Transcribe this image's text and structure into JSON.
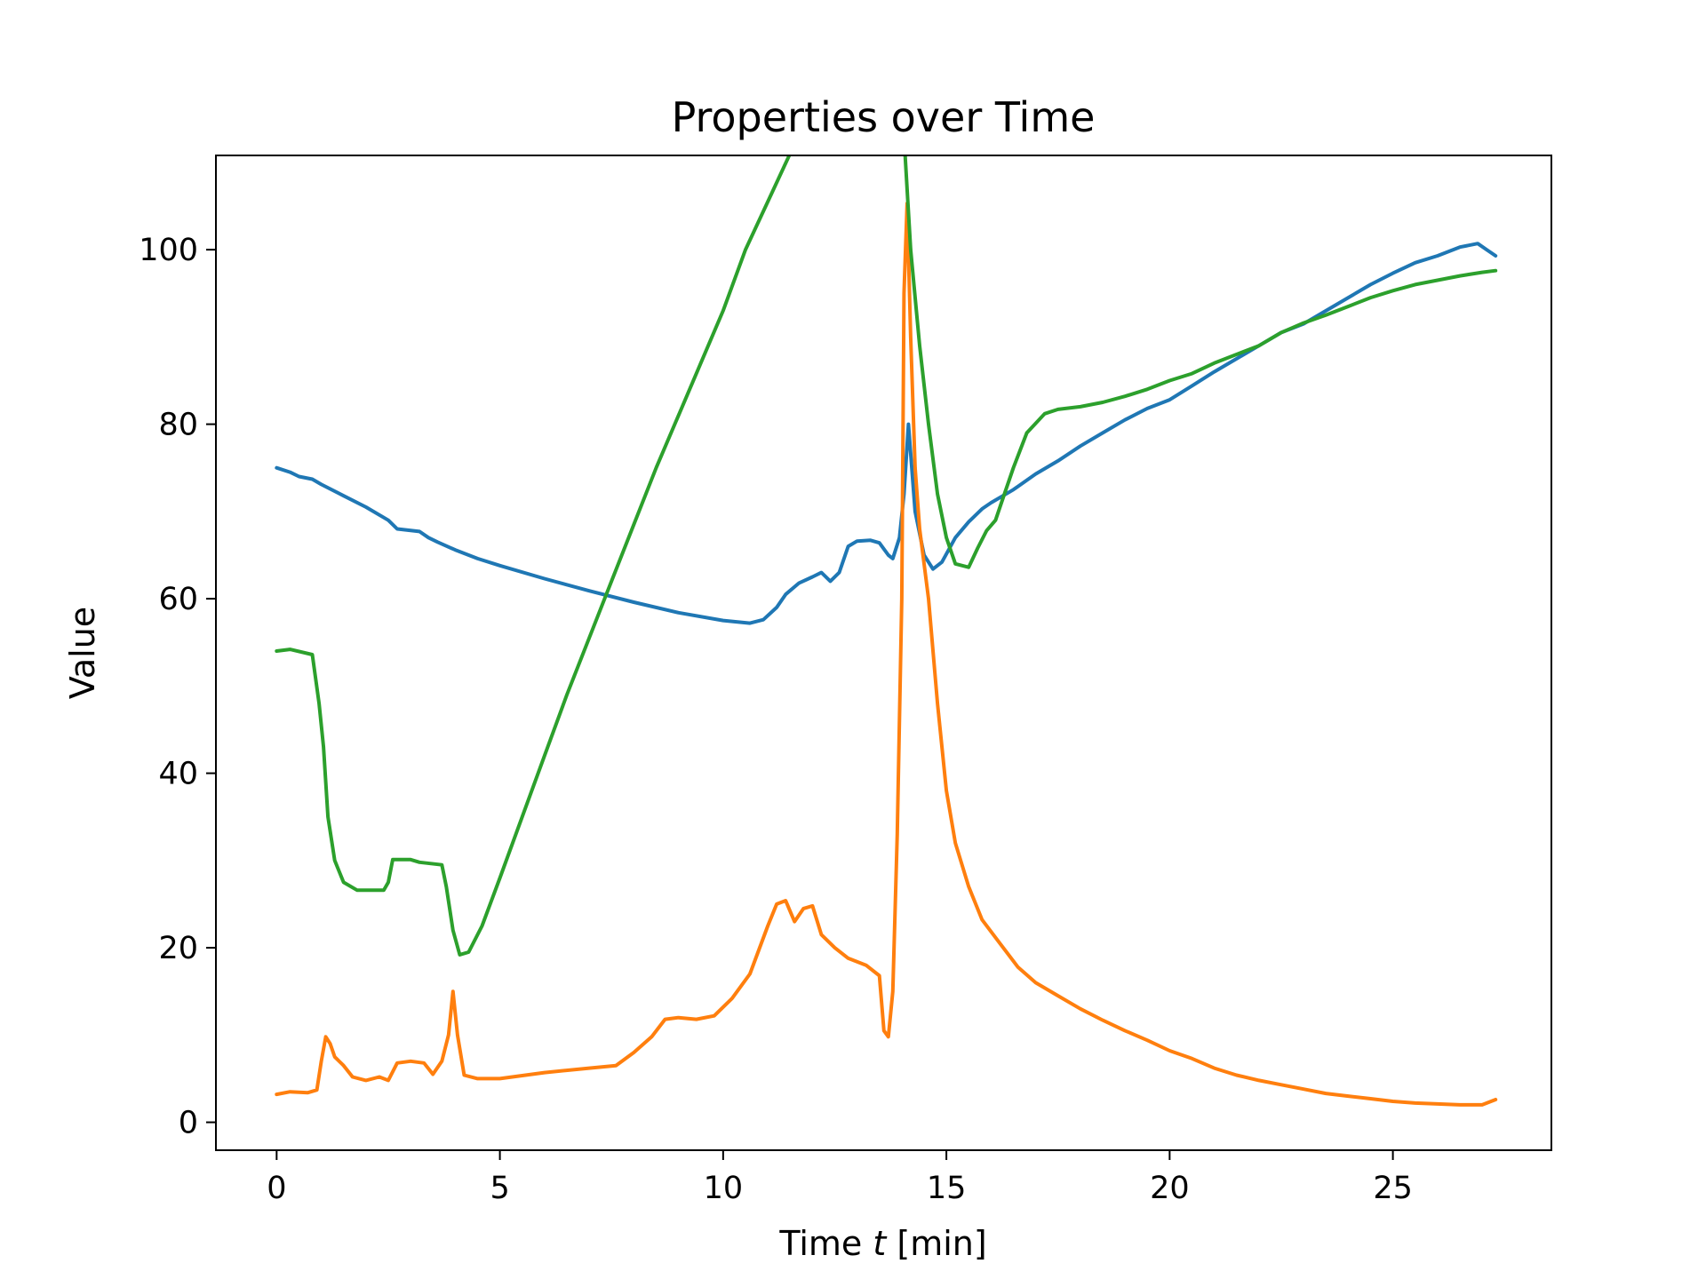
{
  "chart_data": {
    "type": "line",
    "title": "Properties over Time",
    "xlabel_prefix": "Time ",
    "xlabel_var": "t",
    "xlabel_suffix": " [min]",
    "ylabel": "Value",
    "xlim": [
      -1.36,
      28.55
    ],
    "ylim": [
      -3.2,
      110.8
    ],
    "xticks": [
      0,
      5,
      10,
      15,
      20,
      25
    ],
    "yticks": [
      0,
      20,
      40,
      60,
      80,
      100
    ],
    "grid": false,
    "legend": "none",
    "series": [
      {
        "color": "#1f77b4",
        "points": [
          [
            0,
            75
          ],
          [
            0.3,
            74.5
          ],
          [
            0.5,
            74
          ],
          [
            0.8,
            73.7
          ],
          [
            1,
            73.1
          ],
          [
            1.5,
            71.8
          ],
          [
            2,
            70.5
          ],
          [
            2.5,
            69
          ],
          [
            2.7,
            68
          ],
          [
            3.2,
            67.7
          ],
          [
            3.4,
            67
          ],
          [
            3.6,
            66.5
          ],
          [
            4,
            65.6
          ],
          [
            4.5,
            64.6
          ],
          [
            5,
            63.8
          ],
          [
            6,
            62.3
          ],
          [
            7,
            60.9
          ],
          [
            8,
            59.6
          ],
          [
            9,
            58.4
          ],
          [
            10,
            57.5
          ],
          [
            10.6,
            57.2
          ],
          [
            10.9,
            57.6
          ],
          [
            11.2,
            59
          ],
          [
            11.4,
            60.5
          ],
          [
            11.7,
            61.8
          ],
          [
            12,
            62.5
          ],
          [
            12.2,
            63
          ],
          [
            12.4,
            62
          ],
          [
            12.6,
            63
          ],
          [
            12.8,
            66
          ],
          [
            13,
            66.6
          ],
          [
            13.3,
            66.7
          ],
          [
            13.5,
            66.4
          ],
          [
            13.7,
            65
          ],
          [
            13.8,
            64.6
          ],
          [
            13.95,
            67
          ],
          [
            14.05,
            72
          ],
          [
            14.15,
            80
          ],
          [
            14.3,
            70
          ],
          [
            14.5,
            65
          ],
          [
            14.7,
            63.4
          ],
          [
            14.9,
            64.2
          ],
          [
            15.2,
            67
          ],
          [
            15.5,
            68.8
          ],
          [
            15.8,
            70.3
          ],
          [
            16,
            71
          ],
          [
            16.5,
            72.5
          ],
          [
            17,
            74.3
          ],
          [
            17.5,
            75.8
          ],
          [
            18,
            77.5
          ],
          [
            18.5,
            79
          ],
          [
            19,
            80.5
          ],
          [
            19.5,
            81.8
          ],
          [
            20,
            82.8
          ],
          [
            20.5,
            84.4
          ],
          [
            21,
            86
          ],
          [
            21.5,
            87.5
          ],
          [
            22,
            89
          ],
          [
            22.5,
            90.5
          ],
          [
            23,
            91.5
          ],
          [
            23.5,
            93
          ],
          [
            24,
            94.5
          ],
          [
            24.5,
            96
          ],
          [
            25,
            97.3
          ],
          [
            25.5,
            98.5
          ],
          [
            26,
            99.3
          ],
          [
            26.5,
            100.3
          ],
          [
            26.9,
            100.7
          ],
          [
            27.1,
            100
          ],
          [
            27.3,
            99.3
          ]
        ]
      },
      {
        "color": "#ff7f0e",
        "points": [
          [
            0,
            3.2
          ],
          [
            0.3,
            3.5
          ],
          [
            0.7,
            3.4
          ],
          [
            0.9,
            3.7
          ],
          [
            1,
            7
          ],
          [
            1.1,
            9.8
          ],
          [
            1.2,
            9
          ],
          [
            1.3,
            7.5
          ],
          [
            1.5,
            6.5
          ],
          [
            1.7,
            5.2
          ],
          [
            2,
            4.8
          ],
          [
            2.3,
            5.2
          ],
          [
            2.5,
            4.8
          ],
          [
            2.7,
            6.8
          ],
          [
            3,
            7
          ],
          [
            3.3,
            6.8
          ],
          [
            3.5,
            5.5
          ],
          [
            3.7,
            7
          ],
          [
            3.85,
            10
          ],
          [
            3.95,
            15
          ],
          [
            4.05,
            10
          ],
          [
            4.2,
            5.4
          ],
          [
            4.5,
            5
          ],
          [
            5,
            5
          ],
          [
            6,
            5.7
          ],
          [
            7,
            6.2
          ],
          [
            7.6,
            6.5
          ],
          [
            8,
            8
          ],
          [
            8.4,
            9.8
          ],
          [
            8.7,
            11.8
          ],
          [
            9,
            12
          ],
          [
            9.4,
            11.8
          ],
          [
            9.8,
            12.2
          ],
          [
            10.2,
            14.2
          ],
          [
            10.6,
            17
          ],
          [
            11,
            22.5
          ],
          [
            11.2,
            25
          ],
          [
            11.4,
            25.4
          ],
          [
            11.6,
            23
          ],
          [
            11.8,
            24.5
          ],
          [
            12,
            24.8
          ],
          [
            12.2,
            21.5
          ],
          [
            12.5,
            20
          ],
          [
            12.8,
            18.8
          ],
          [
            13.2,
            18
          ],
          [
            13.5,
            16.8
          ],
          [
            13.6,
            10.5
          ],
          [
            13.7,
            9.8
          ],
          [
            13.8,
            15
          ],
          [
            13.9,
            33
          ],
          [
            14,
            60
          ],
          [
            14.05,
            95
          ],
          [
            14.12,
            105.3
          ],
          [
            14.2,
            90
          ],
          [
            14.3,
            75
          ],
          [
            14.4,
            68
          ],
          [
            14.6,
            60
          ],
          [
            14.8,
            48
          ],
          [
            15,
            38
          ],
          [
            15.2,
            32
          ],
          [
            15.5,
            27
          ],
          [
            15.8,
            23.2
          ],
          [
            16.2,
            20.5
          ],
          [
            16.6,
            17.8
          ],
          [
            17,
            16
          ],
          [
            17.5,
            14.5
          ],
          [
            18,
            13
          ],
          [
            18.5,
            11.7
          ],
          [
            19,
            10.5
          ],
          [
            19.5,
            9.4
          ],
          [
            20,
            8.2
          ],
          [
            20.5,
            7.3
          ],
          [
            21,
            6.2
          ],
          [
            21.5,
            5.4
          ],
          [
            22,
            4.8
          ],
          [
            22.5,
            4.3
          ],
          [
            23,
            3.8
          ],
          [
            23.5,
            3.3
          ],
          [
            24,
            3
          ],
          [
            24.5,
            2.7
          ],
          [
            25,
            2.4
          ],
          [
            25.5,
            2.2
          ],
          [
            26,
            2.1
          ],
          [
            26.5,
            2
          ],
          [
            27,
            2
          ],
          [
            27.3,
            2.6
          ]
        ]
      },
      {
        "color": "#2ca02c",
        "points": [
          [
            0,
            54
          ],
          [
            0.3,
            54.2
          ],
          [
            0.8,
            53.6
          ],
          [
            0.95,
            48
          ],
          [
            1.05,
            43
          ],
          [
            1.15,
            35
          ],
          [
            1.3,
            30
          ],
          [
            1.5,
            27.5
          ],
          [
            1.8,
            26.6
          ],
          [
            2.4,
            26.6
          ],
          [
            2.5,
            27.5
          ],
          [
            2.6,
            30.1
          ],
          [
            3,
            30.1
          ],
          [
            3.2,
            29.8
          ],
          [
            3.7,
            29.5
          ],
          [
            3.8,
            27
          ],
          [
            3.95,
            22
          ],
          [
            4.1,
            19.2
          ],
          [
            4.3,
            19.5
          ],
          [
            4.6,
            22.5
          ],
          [
            5,
            28
          ],
          [
            5.5,
            35
          ],
          [
            6,
            42
          ],
          [
            6.5,
            49
          ],
          [
            7,
            55.5
          ],
          [
            7.5,
            62
          ],
          [
            8,
            68.5
          ],
          [
            8.5,
            75
          ],
          [
            9,
            81
          ],
          [
            9.5,
            87
          ],
          [
            10,
            93
          ],
          [
            10.5,
            100
          ],
          [
            11,
            105.5
          ],
          [
            11.5,
            111
          ],
          [
            11.8,
            114.5
          ],
          [
            12,
            115.5
          ],
          [
            12.5,
            115.6
          ],
          [
            13,
            115.6
          ],
          [
            13.5,
            115.5
          ],
          [
            14,
            115.3
          ],
          [
            14.05,
            113
          ],
          [
            14.2,
            100
          ],
          [
            14.4,
            89
          ],
          [
            14.6,
            80
          ],
          [
            14.8,
            72
          ],
          [
            15,
            67
          ],
          [
            15.2,
            64
          ],
          [
            15.5,
            63.6
          ],
          [
            15.7,
            65.8
          ],
          [
            15.9,
            67.8
          ],
          [
            16.1,
            69
          ],
          [
            16.3,
            72
          ],
          [
            16.5,
            75
          ],
          [
            16.8,
            79
          ],
          [
            17.2,
            81.2
          ],
          [
            17.5,
            81.7
          ],
          [
            18,
            82
          ],
          [
            18.5,
            82.5
          ],
          [
            19,
            83.2
          ],
          [
            19.5,
            84
          ],
          [
            20,
            85
          ],
          [
            20.5,
            85.8
          ],
          [
            21,
            87
          ],
          [
            21.5,
            88
          ],
          [
            22,
            89
          ],
          [
            22.5,
            90.5
          ],
          [
            23,
            91.6
          ],
          [
            23.5,
            92.5
          ],
          [
            24,
            93.5
          ],
          [
            24.5,
            94.5
          ],
          [
            25,
            95.3
          ],
          [
            25.5,
            96
          ],
          [
            26,
            96.5
          ],
          [
            26.5,
            97
          ],
          [
            27,
            97.4
          ],
          [
            27.3,
            97.6
          ]
        ]
      }
    ]
  }
}
